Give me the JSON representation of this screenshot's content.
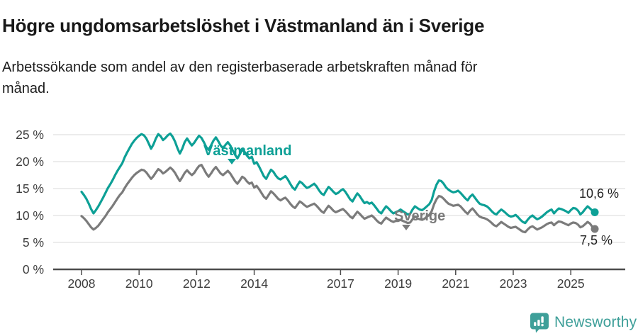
{
  "header": {
    "title": "Högre ungdomsarbetslöshet i Västmanland än i Sverige",
    "subtitle": "Arbetssökande som andel av den registerbaserade arbetskraften månad för\nmånad."
  },
  "chart_data": {
    "type": "line",
    "frequency": "monthly",
    "x_domain": [
      2008,
      2026
    ],
    "x_start": "2008-01",
    "x_end": "2025-11",
    "ylim": [
      0,
      26.5
    ],
    "grid": "horizontal",
    "legend_position": "inline-labels",
    "x_ticks": [
      {
        "v": 2008,
        "label": "2008"
      },
      {
        "v": 2010,
        "label": "2010"
      },
      {
        "v": 2012,
        "label": "2012"
      },
      {
        "v": 2014,
        "label": "2014"
      },
      {
        "v": 2017,
        "label": "2017"
      },
      {
        "v": 2019,
        "label": "2019"
      },
      {
        "v": 2021,
        "label": "2021"
      },
      {
        "v": 2023,
        "label": "2023"
      },
      {
        "v": 2025,
        "label": "2025"
      }
    ],
    "y_ticks": [
      {
        "v": 0,
        "label": "0 %"
      },
      {
        "v": 5,
        "label": "5 %"
      },
      {
        "v": 10,
        "label": "10 %"
      },
      {
        "v": 15,
        "label": "15 %"
      },
      {
        "v": 20,
        "label": "20 %"
      },
      {
        "v": 25,
        "label": "25 %"
      }
    ],
    "series": [
      {
        "id": "sverige",
        "name": "Sverige",
        "color": "#7b7b7b",
        "end_value": 7.5,
        "end_label": "7,5 %",
        "values": [
          9.9,
          9.5,
          9.0,
          8.4,
          7.8,
          7.4,
          7.7,
          8.1,
          8.7,
          9.3,
          9.9,
          10.6,
          11.2,
          11.8,
          12.5,
          13.2,
          13.8,
          14.3,
          15.1,
          15.8,
          16.4,
          17.0,
          17.5,
          17.9,
          18.2,
          18.5,
          18.4,
          18.0,
          17.4,
          16.8,
          17.3,
          18.0,
          18.6,
          18.3,
          17.8,
          18.1,
          18.5,
          18.9,
          18.5,
          17.9,
          17.1,
          16.4,
          17.1,
          17.9,
          18.4,
          17.9,
          17.5,
          17.9,
          18.6,
          19.2,
          19.4,
          18.6,
          17.8,
          17.2,
          17.8,
          18.5,
          19.0,
          18.4,
          17.8,
          17.5,
          17.9,
          18.3,
          17.8,
          17.1,
          16.4,
          15.9,
          16.5,
          17.2,
          16.9,
          16.3,
          15.9,
          16.1,
          15.2,
          15.5,
          14.9,
          14.2,
          13.5,
          13.1,
          13.8,
          14.5,
          14.1,
          13.6,
          13.1,
          12.8,
          13.1,
          13.3,
          12.8,
          12.2,
          11.7,
          11.4,
          12.0,
          12.6,
          12.3,
          11.9,
          11.6,
          11.8,
          12.0,
          12.2,
          11.8,
          11.3,
          10.8,
          10.5,
          11.2,
          11.8,
          11.4,
          10.9,
          10.6,
          10.8,
          11.0,
          11.2,
          10.8,
          10.3,
          9.8,
          9.5,
          10.1,
          10.7,
          10.3,
          9.8,
          9.4,
          9.6,
          9.8,
          10.0,
          9.6,
          9.1,
          8.7,
          8.5,
          9.1,
          9.6,
          9.3,
          9.0,
          8.8,
          9.0,
          9.0,
          9.2,
          9.0,
          8.8,
          8.6,
          8.7,
          9.3,
          9.8,
          9.5,
          9.3,
          9.2,
          9.4,
          9.8,
          10.1,
          10.8,
          12.1,
          13.0,
          13.6,
          13.5,
          13.1,
          12.6,
          12.2,
          12.0,
          11.8,
          11.9,
          12.0,
          11.7,
          11.2,
          10.7,
          10.3,
          10.9,
          11.3,
          10.8,
          10.2,
          9.8,
          9.6,
          9.5,
          9.3,
          9.0,
          8.6,
          8.2,
          8.0,
          8.4,
          8.8,
          8.5,
          8.2,
          7.9,
          7.7,
          7.8,
          7.9,
          7.6,
          7.3,
          7.0,
          6.9,
          7.4,
          7.8,
          8.0,
          7.7,
          7.4,
          7.6,
          7.8,
          8.1,
          8.4,
          8.6,
          8.7,
          8.2,
          8.6,
          8.9,
          8.8,
          8.6,
          8.4,
          8.2,
          8.5,
          8.7,
          8.6,
          8.3,
          7.8,
          8.0,
          8.4,
          8.8,
          8.5,
          7.9,
          7.5
        ]
      },
      {
        "id": "vastmanland",
        "name": "Västmanland",
        "color": "#0da096",
        "end_value": 10.6,
        "end_label": "10,6 %",
        "values": [
          14.4,
          13.8,
          13.1,
          12.2,
          11.2,
          10.4,
          11.0,
          11.7,
          12.5,
          13.3,
          14.2,
          15.1,
          15.8,
          16.6,
          17.5,
          18.3,
          19.0,
          19.7,
          20.8,
          21.7,
          22.5,
          23.3,
          23.9,
          24.4,
          24.8,
          25.1,
          24.9,
          24.3,
          23.4,
          22.4,
          23.2,
          24.3,
          25.1,
          24.7,
          24.0,
          24.4,
          24.9,
          25.2,
          24.6,
          23.7,
          22.5,
          21.5,
          22.4,
          23.6,
          24.3,
          23.6,
          23.0,
          23.5,
          24.2,
          24.8,
          24.4,
          23.6,
          22.7,
          22.2,
          23.0,
          23.9,
          24.5,
          23.8,
          23.0,
          22.5,
          23.1,
          23.6,
          23.0,
          22.1,
          21.3,
          20.6,
          21.4,
          22.2,
          21.8,
          21.1,
          20.6,
          20.9,
          19.6,
          19.9,
          19.1,
          18.2,
          17.3,
          16.8,
          17.7,
          18.5,
          18.1,
          17.4,
          16.9,
          16.7,
          17.0,
          17.3,
          16.7,
          15.9,
          15.2,
          14.8,
          15.6,
          16.3,
          16.0,
          15.5,
          15.1,
          15.3,
          15.6,
          15.9,
          15.4,
          14.7,
          14.1,
          13.8,
          14.6,
          15.3,
          14.9,
          14.4,
          14.0,
          14.2,
          14.6,
          14.9,
          14.4,
          13.7,
          13.0,
          12.6,
          13.4,
          14.1,
          13.6,
          12.9,
          12.3,
          12.5,
          12.2,
          12.4,
          11.9,
          11.3,
          10.7,
          10.4,
          11.1,
          11.7,
          11.3,
          10.8,
          10.4,
          10.6,
          10.8,
          11.1,
          10.8,
          10.5,
          10.2,
          10.3,
          11.1,
          11.7,
          11.4,
          11.1,
          11.0,
          11.3,
          11.7,
          12.1,
          12.9,
          14.5,
          15.7,
          16.5,
          16.4,
          15.9,
          15.2,
          14.8,
          14.5,
          14.3,
          14.4,
          14.6,
          14.2,
          13.7,
          13.2,
          12.8,
          13.5,
          13.9,
          13.3,
          12.7,
          12.2,
          12.0,
          11.9,
          11.7,
          11.3,
          10.8,
          10.4,
          10.2,
          10.7,
          11.1,
          10.8,
          10.4,
          10.0,
          9.8,
          9.9,
          10.1,
          9.7,
          9.2,
          8.8,
          8.6,
          9.2,
          9.7,
          10.0,
          9.6,
          9.3,
          9.5,
          9.8,
          10.2,
          10.6,
          10.9,
          11.1,
          10.4,
          10.9,
          11.3,
          11.2,
          11.0,
          10.8,
          10.5,
          11.0,
          11.4,
          11.3,
          10.9,
          10.2,
          10.6,
          11.2,
          11.7,
          11.3,
          10.9,
          10.6
        ]
      }
    ],
    "annotations": {
      "vastmanland_inline_label": "Västmanland",
      "sverige_inline_label": "Sverige"
    }
  },
  "footer": {
    "brand": "Newsworthy",
    "brand_color": "#3e9f99",
    "logo_icon": "bar-chart-speech-bubble-icon"
  },
  "colors": {
    "vastmanland_line": "#0da096",
    "sverige_line": "#7b7b7b",
    "gridline": "#d9d9d9",
    "axis": "#4c4c4c"
  }
}
